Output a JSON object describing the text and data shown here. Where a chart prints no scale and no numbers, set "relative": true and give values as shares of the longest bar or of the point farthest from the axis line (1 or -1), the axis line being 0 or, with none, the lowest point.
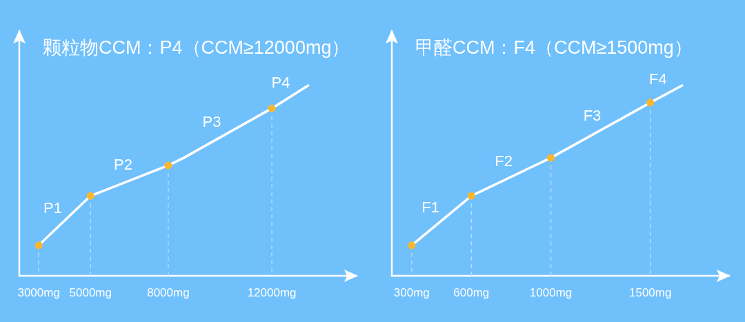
{
  "chart_data": [
    {
      "type": "line",
      "title": "颗粒物CCM：P4（CCM≥12000mg）",
      "relative": true,
      "xlim": [
        2250,
        15300
      ],
      "xticks": [
        {
          "value": 3000,
          "label": "3000mg"
        },
        {
          "value": 5000,
          "label": "5000mg"
        },
        {
          "value": 8000,
          "label": "8000mg"
        },
        {
          "value": 12000,
          "label": "12000mg"
        }
      ],
      "series": [
        {
          "type": "line",
          "color": "#ffffff",
          "x": [
            3000,
            5000,
            8000,
            8600,
            12000,
            13400
          ],
          "values": [
            0.16,
            0.42,
            0.58,
            0.62,
            0.88,
            1
          ],
          "marker": "none",
          "line_style": "solid"
        },
        {
          "type": "lollipop",
          "color": "#f8b62d",
          "x": [
            3000,
            5000,
            8000,
            12000
          ],
          "values": [
            0.16,
            0.42,
            0.58,
            0.88
          ],
          "marker": "circle",
          "line_style": "dashed"
        }
      ],
      "annotations": [
        "P1",
        "P2",
        "P3",
        "P4"
      ]
    },
    {
      "type": "line",
      "title": "甲醛CCM：F4（CCM≥1500mg）",
      "relative": true,
      "xlim": [
        200,
        1900
      ],
      "xticks": [
        {
          "value": 300,
          "label": "300mg"
        },
        {
          "value": 600,
          "label": "600mg"
        },
        {
          "value": 1000,
          "label": "1000mg"
        },
        {
          "value": 1500,
          "label": "1500mg"
        }
      ],
      "series": [
        {
          "type": "line",
          "color": "#ffffff",
          "x": [
            300,
            600,
            1000,
            1500,
            1660
          ],
          "values": [
            0.16,
            0.42,
            0.62,
            0.91,
            1
          ],
          "marker": "none",
          "line_style": "solid"
        },
        {
          "type": "lollipop",
          "color": "#f8b62d",
          "x": [
            300,
            600,
            1000,
            1500
          ],
          "values": [
            0.16,
            0.42,
            0.62,
            0.91
          ],
          "marker": "circle",
          "line_style": "dashed"
        }
      ],
      "annotations": [
        "F1",
        "F2",
        "F3",
        "F4"
      ]
    }
  ]
}
